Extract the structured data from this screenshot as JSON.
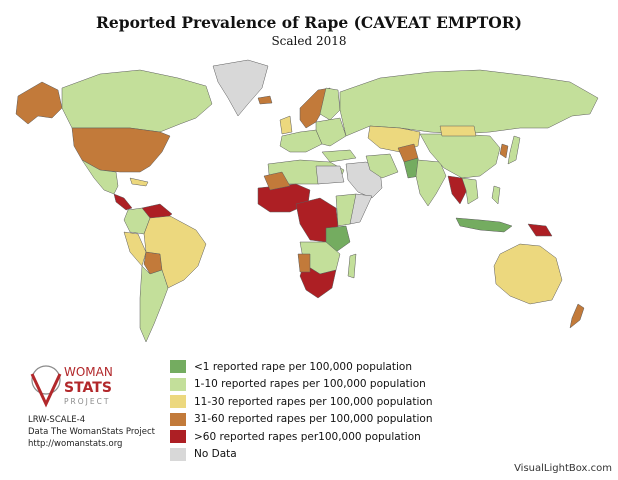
{
  "title": "Reported Prevalence of Rape (CAVEAT EMPTOR)",
  "subtitle": "Scaled 2018",
  "legend": [
    {
      "label": "<1 reported rape per 100,000 population",
      "color": "#74ac60"
    },
    {
      "label": "1-10 reported rapes per 100,000 population",
      "color": "#c3df9a"
    },
    {
      "label": "11-30 reported rapes per 100,000 population",
      "color": "#ecd87e"
    },
    {
      "label": "31-60 reported rapes per 100,000 population",
      "color": "#c27a3a"
    },
    {
      "label": ">60 reported rapes per100,000 population",
      "color": "#ad1f24"
    },
    {
      "label": "No Data",
      "color": "#d8d8d8"
    }
  ],
  "logo": {
    "line1": "WOMAN",
    "line2": "STATS",
    "line3": "PROJECT"
  },
  "info": {
    "scale_code": "LRW-SCALE-4",
    "source": "Data The WomanStats Project",
    "url": "http://womanstats.org"
  },
  "credit": "VisualLightBox.com",
  "colors": {
    "border": "#5b5b5b",
    "logo_red": "#b2282b",
    "logo_gray": "#8a8a8a"
  }
}
